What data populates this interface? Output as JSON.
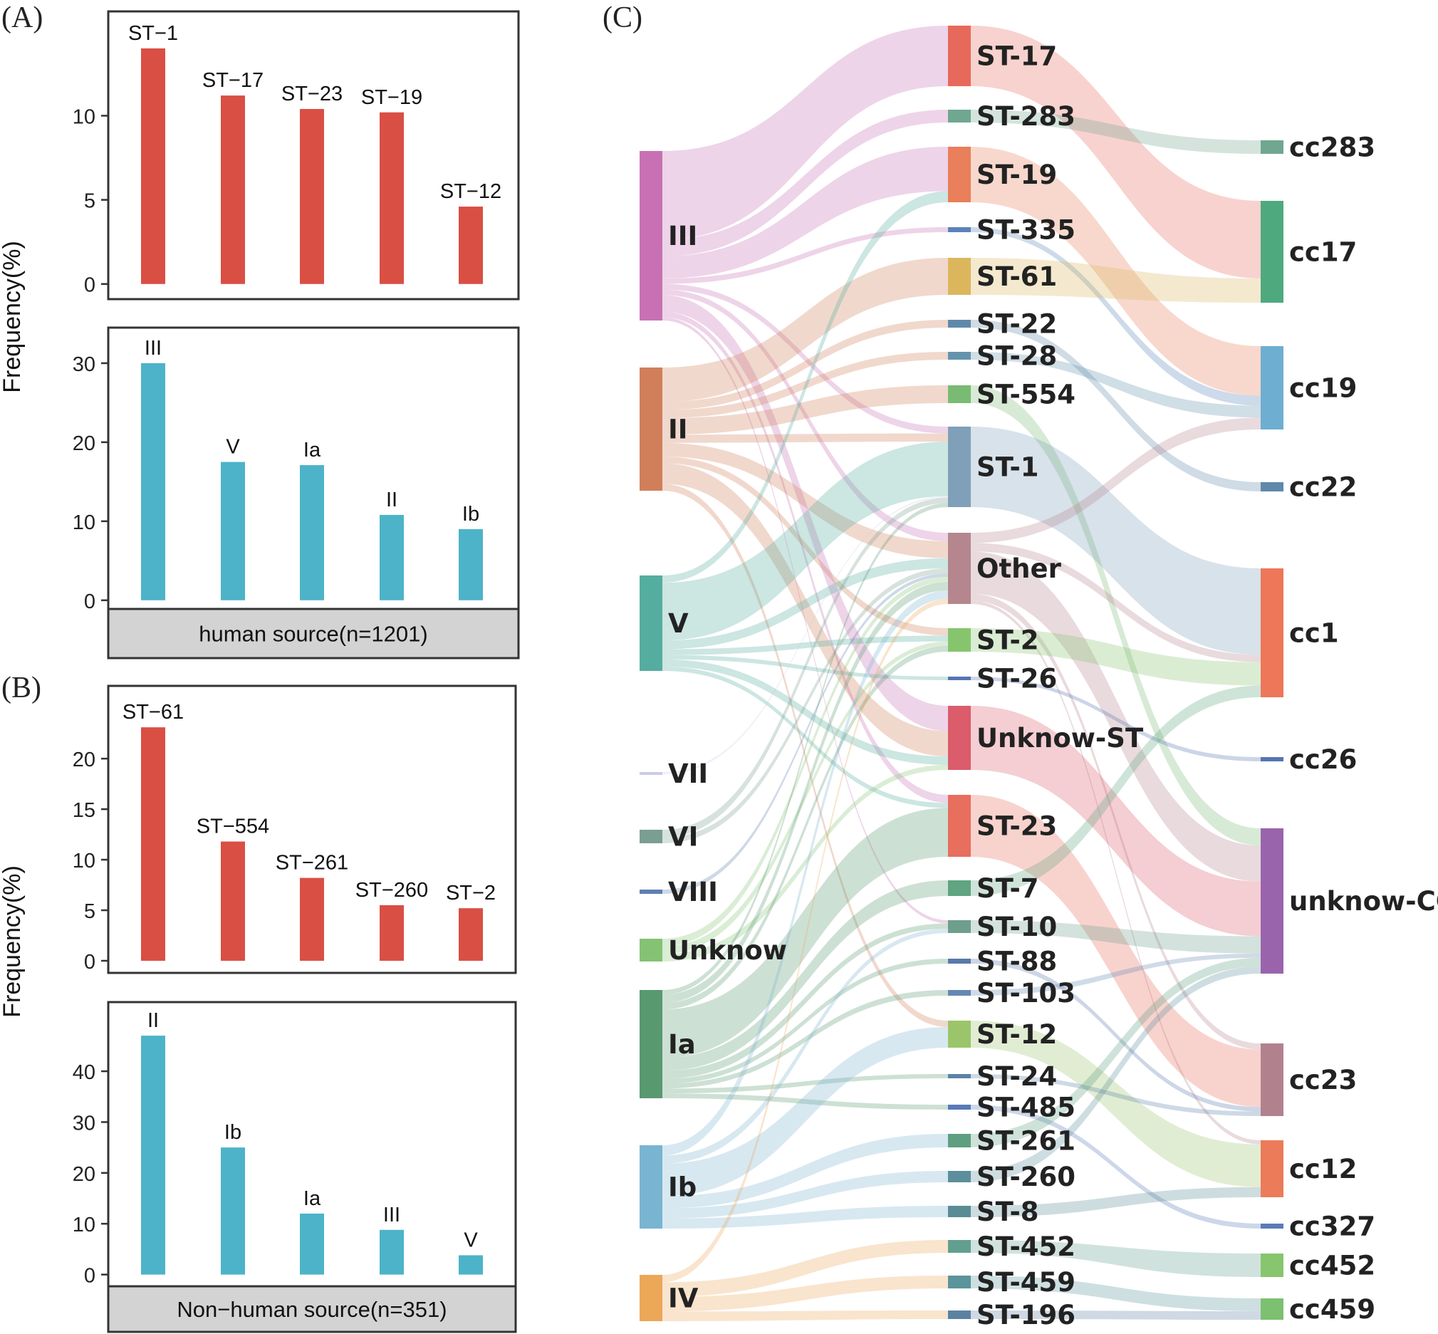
{
  "panel_labels": {
    "a": "(A)",
    "b": "(B)",
    "c": "(C)"
  },
  "y_axis_label": "Frequency(%)",
  "colors": {
    "st_bar": "#d94f44",
    "serotype_bar": "#4db3c8",
    "caption_fill": "#d3d3d3"
  },
  "chart_data": [
    {
      "id": "A-top",
      "type": "bar",
      "title": "",
      "xlabel": "",
      "ylabel": "Frequency(%)",
      "categories": [
        "ST−1",
        "ST−17",
        "ST−23",
        "ST−19",
        "ST−12"
      ],
      "values": [
        14.0,
        11.2,
        10.4,
        10.2,
        4.6
      ],
      "ylim": [
        -0.9,
        16.2
      ],
      "yticks": [
        0,
        5,
        10
      ],
      "grid": false
    },
    {
      "id": "A-bottom",
      "type": "bar",
      "title": "",
      "xlabel": "human source(n=1201)",
      "ylabel": "Frequency(%)",
      "categories": [
        "III",
        "V",
        "Ia",
        "II",
        "Ib"
      ],
      "values": [
        30.0,
        17.5,
        17.1,
        10.8,
        9.0
      ],
      "ylim": [
        -1.1,
        34.5
      ],
      "yticks": [
        0,
        10,
        20,
        30
      ],
      "grid": false
    },
    {
      "id": "B-top",
      "type": "bar",
      "title": "",
      "xlabel": "",
      "ylabel": "Frequency(%)",
      "categories": [
        "ST−61",
        "ST−554",
        "ST−261",
        "ST−260",
        "ST−2"
      ],
      "values": [
        23.1,
        11.8,
        8.2,
        5.5,
        5.2
      ],
      "ylim": [
        -1.2,
        27.2
      ],
      "yticks": [
        0,
        5,
        10,
        15,
        20
      ],
      "grid": false
    },
    {
      "id": "B-bottom",
      "type": "bar",
      "title": "",
      "xlabel": "Non−human source(n=351)",
      "ylabel": "Frequency(%)",
      "categories": [
        "II",
        "Ib",
        "Ia",
        "III",
        "V"
      ],
      "values": [
        47.0,
        25.0,
        12.0,
        8.8,
        3.8
      ],
      "ylim": [
        -2.3,
        53.6
      ],
      "yticks": [
        0,
        10,
        20,
        30,
        40
      ],
      "grid": false
    },
    {
      "id": "C",
      "type": "sankey",
      "title": "",
      "left_nodes": [
        {
          "id": "III",
          "label": "III",
          "color": "#c771b4"
        },
        {
          "id": "II",
          "label": "II",
          "color": "#d17f5b"
        },
        {
          "id": "V",
          "label": "V",
          "color": "#55ad9f"
        },
        {
          "id": "VII",
          "label": "VII",
          "color": "#c9cbe8"
        },
        {
          "id": "VI",
          "label": "VI",
          "color": "#7a9e92"
        },
        {
          "id": "VIII",
          "label": "VIII",
          "color": "#5e7fb1"
        },
        {
          "id": "Unknow",
          "label": "Unknow",
          "color": "#85c274"
        },
        {
          "id": "Ia",
          "label": "Ia",
          "color": "#58996f"
        },
        {
          "id": "Ib",
          "label": "Ib",
          "color": "#79b4d1"
        },
        {
          "id": "IV",
          "label": "IV",
          "color": "#eca758"
        }
      ],
      "middle_nodes": [
        {
          "id": "ST-17",
          "label": "ST-17",
          "color": "#e7695c"
        },
        {
          "id": "ST-283",
          "label": "ST-283",
          "color": "#6fa790"
        },
        {
          "id": "ST-19",
          "label": "ST-19",
          "color": "#e97f5b"
        },
        {
          "id": "ST-335",
          "label": "ST-335",
          "color": "#5b83b7"
        },
        {
          "id": "ST-61",
          "label": "ST-61",
          "color": "#dbb65c"
        },
        {
          "id": "ST-22",
          "label": "ST-22",
          "color": "#5f89aa"
        },
        {
          "id": "ST-28",
          "label": "ST-28",
          "color": "#6593ad"
        },
        {
          "id": "ST-554",
          "label": "ST-554",
          "color": "#79bb73"
        },
        {
          "id": "ST-1",
          "label": "ST-1",
          "color": "#7fa0b8"
        },
        {
          "id": "Other",
          "label": "Other",
          "color": "#b5868e"
        },
        {
          "id": "ST-2",
          "label": "ST-2",
          "color": "#86c56d"
        },
        {
          "id": "ST-26",
          "label": "ST-26",
          "color": "#5575b3"
        },
        {
          "id": "Unknow-ST",
          "label": "Unknow-ST",
          "color": "#db5c6b"
        },
        {
          "id": "ST-23",
          "label": "ST-23",
          "color": "#e86e5e"
        },
        {
          "id": "ST-7",
          "label": "ST-7",
          "color": "#60a482"
        },
        {
          "id": "ST-10",
          "label": "ST-10",
          "color": "#6e9e8c"
        },
        {
          "id": "ST-88",
          "label": "ST-88",
          "color": "#5a78ac"
        },
        {
          "id": "ST-103",
          "label": "ST-103",
          "color": "#6587b2"
        },
        {
          "id": "ST-12",
          "label": "ST-12",
          "color": "#9bc56a"
        },
        {
          "id": "ST-24",
          "label": "ST-24",
          "color": "#5b82aa"
        },
        {
          "id": "ST-485",
          "label": "ST-485",
          "color": "#5a7ab8"
        },
        {
          "id": "ST-261",
          "label": "ST-261",
          "color": "#5d9f80"
        },
        {
          "id": "ST-260",
          "label": "ST-260",
          "color": "#5c8e9b"
        },
        {
          "id": "ST-8",
          "label": "ST-8",
          "color": "#5a8c96"
        },
        {
          "id": "ST-452",
          "label": "ST-452",
          "color": "#629f91"
        },
        {
          "id": "ST-459",
          "label": "ST-459",
          "color": "#5b949a"
        },
        {
          "id": "ST-196",
          "label": "ST-196",
          "color": "#5c82a2"
        }
      ],
      "right_nodes": [
        {
          "id": "cc283",
          "label": "cc283",
          "color": "#6fa790"
        },
        {
          "id": "cc17",
          "label": "cc17",
          "color": "#4fa97e"
        },
        {
          "id": "cc19",
          "label": "cc19",
          "color": "#6eaed0"
        },
        {
          "id": "cc22",
          "label": "cc22",
          "color": "#5f89aa"
        },
        {
          "id": "cc1",
          "label": "cc1",
          "color": "#ed7758"
        },
        {
          "id": "cc26",
          "label": "cc26",
          "color": "#5575b3"
        },
        {
          "id": "unknow-CC",
          "label": "unknow-CC",
          "color": "#9a64ad"
        },
        {
          "id": "cc23",
          "label": "cc23",
          "color": "#b2818e"
        },
        {
          "id": "cc12",
          "label": "cc12",
          "color": "#ec7b59"
        },
        {
          "id": "cc327",
          "label": "cc327",
          "color": "#5a7ab8"
        },
        {
          "id": "cc452",
          "label": "cc452",
          "color": "#87c56e"
        },
        {
          "id": "cc459",
          "label": "cc459",
          "color": "#7cc070"
        }
      ],
      "links": [
        {
          "source": "III",
          "target": "ST-17",
          "value": 8
        },
        {
          "source": "III",
          "target": "ST-283",
          "value": 1.5
        },
        {
          "source": "III",
          "target": "ST-19",
          "value": 2
        },
        {
          "source": "III",
          "target": "ST-335",
          "value": 0.5
        },
        {
          "source": "III",
          "target": "ST-1",
          "value": 0.5
        },
        {
          "source": "III",
          "target": "Other",
          "value": 0.5
        },
        {
          "source": "III",
          "target": "Unknow-ST",
          "value": 1.5
        },
        {
          "source": "III",
          "target": "ST-23",
          "value": 0.5
        },
        {
          "source": "III",
          "target": "ST-10",
          "value": 0.3
        },
        {
          "source": "II",
          "target": "ST-61",
          "value": 2.5
        },
        {
          "source": "II",
          "target": "ST-22",
          "value": 0.6
        },
        {
          "source": "II",
          "target": "ST-28",
          "value": 0.6
        },
        {
          "source": "II",
          "target": "ST-554",
          "value": 1.2
        },
        {
          "source": "II",
          "target": "ST-1",
          "value": 0.6
        },
        {
          "source": "II",
          "target": "Other",
          "value": 1
        },
        {
          "source": "II",
          "target": "ST-2",
          "value": 0.5
        },
        {
          "source": "II",
          "target": "Unknow-ST",
          "value": 1.5
        },
        {
          "source": "II",
          "target": "ST-12",
          "value": 0.5
        },
        {
          "source": "V",
          "target": "ST-19",
          "value": 0.5
        },
        {
          "source": "V",
          "target": "ST-1",
          "value": 4
        },
        {
          "source": "V",
          "target": "Other",
          "value": 0.6
        },
        {
          "source": "V",
          "target": "ST-2",
          "value": 0.4
        },
        {
          "source": "V",
          "target": "ST-26",
          "value": 0.3
        },
        {
          "source": "V",
          "target": "Unknow-ST",
          "value": 0.5
        },
        {
          "source": "V",
          "target": "ST-23",
          "value": 0.3
        },
        {
          "source": "VII",
          "target": "ST-1",
          "value": 0.1
        },
        {
          "source": "VI",
          "target": "ST-1",
          "value": 0.4
        },
        {
          "source": "VI",
          "target": "Other",
          "value": 0.3
        },
        {
          "source": "VIII",
          "target": "Other",
          "value": 0.2
        },
        {
          "source": "Unknow",
          "target": "ST-2",
          "value": 0.3
        },
        {
          "source": "Unknow",
          "target": "Other",
          "value": 0.3
        },
        {
          "source": "Unknow",
          "target": "Unknow-ST",
          "value": 0.3
        },
        {
          "source": "Ia",
          "target": "ST-23",
          "value": 3
        },
        {
          "source": "Ia",
          "target": "ST-7",
          "value": 0.8
        },
        {
          "source": "Ia",
          "target": "ST-10",
          "value": 0.5
        },
        {
          "source": "Ia",
          "target": "ST-88",
          "value": 0.3
        },
        {
          "source": "Ia",
          "target": "ST-103",
          "value": 0.3
        },
        {
          "source": "Ia",
          "target": "ST-24",
          "value": 0.3
        },
        {
          "source": "Ia",
          "target": "ST-485",
          "value": 0.3
        },
        {
          "source": "Ia",
          "target": "Other",
          "value": 0.5
        },
        {
          "source": "Ia",
          "target": "ST-2",
          "value": 0.4
        },
        {
          "source": "Ia",
          "target": "ST-1",
          "value": 0.3
        },
        {
          "source": "Ib",
          "target": "ST-12",
          "value": 1.6
        },
        {
          "source": "Ib",
          "target": "ST-261",
          "value": 0.6
        },
        {
          "source": "Ib",
          "target": "ST-260",
          "value": 0.5
        },
        {
          "source": "Ib",
          "target": "ST-8",
          "value": 0.5
        },
        {
          "source": "Ib",
          "target": "ST-10",
          "value": 0.4
        },
        {
          "source": "Ib",
          "target": "Other",
          "value": 0.5
        },
        {
          "source": "IV",
          "target": "ST-452",
          "value": 0.6
        },
        {
          "source": "IV",
          "target": "ST-459",
          "value": 0.6
        },
        {
          "source": "IV",
          "target": "ST-196",
          "value": 0.4
        },
        {
          "source": "IV",
          "target": "Other",
          "value": 0.3
        },
        {
          "source": "ST-17",
          "target": "cc17",
          "value": 8
        },
        {
          "source": "ST-283",
          "target": "cc283",
          "value": 1.5
        },
        {
          "source": "ST-19",
          "target": "cc19",
          "value": 2.5
        },
        {
          "source": "ST-335",
          "target": "cc19",
          "value": 0.5
        },
        {
          "source": "ST-61",
          "target": "cc17",
          "value": 2.5
        },
        {
          "source": "ST-22",
          "target": "cc22",
          "value": 0.6
        },
        {
          "source": "ST-28",
          "target": "cc19",
          "value": 0.6
        },
        {
          "source": "ST-554",
          "target": "unknow-CC",
          "value": 1.2
        },
        {
          "source": "ST-1",
          "target": "cc1",
          "value": 5.9
        },
        {
          "source": "Other",
          "target": "unknow-CC",
          "value": 2.5
        },
        {
          "source": "Other",
          "target": "cc1",
          "value": 0.5
        },
        {
          "source": "Other",
          "target": "cc19",
          "value": 0.6
        },
        {
          "source": "Other",
          "target": "cc23",
          "value": 0.4
        },
        {
          "source": "Other",
          "target": "cc12",
          "value": 0.2
        },
        {
          "source": "ST-2",
          "target": "cc1",
          "value": 1.6
        },
        {
          "source": "ST-26",
          "target": "cc26",
          "value": 0.3
        },
        {
          "source": "Unknow-ST",
          "target": "unknow-CC",
          "value": 3.8
        },
        {
          "source": "ST-23",
          "target": "cc23",
          "value": 3.8
        },
        {
          "source": "ST-7",
          "target": "cc1",
          "value": 0.8
        },
        {
          "source": "ST-10",
          "target": "unknow-CC",
          "value": 1.2
        },
        {
          "source": "ST-88",
          "target": "cc23",
          "value": 0.3
        },
        {
          "source": "ST-103",
          "target": "unknow-CC",
          "value": 0.3
        },
        {
          "source": "ST-12",
          "target": "cc12",
          "value": 2.1
        },
        {
          "source": "ST-24",
          "target": "cc23",
          "value": 0.3
        },
        {
          "source": "ST-485",
          "target": "cc327",
          "value": 0.3
        },
        {
          "source": "ST-261",
          "target": "unknow-CC",
          "value": 0.6
        },
        {
          "source": "ST-260",
          "target": "unknow-CC",
          "value": 0.5
        },
        {
          "source": "ST-8",
          "target": "cc12",
          "value": 0.5
        },
        {
          "source": "ST-452",
          "target": "cc452",
          "value": 0.6
        },
        {
          "source": "ST-459",
          "target": "cc459",
          "value": 0.6
        },
        {
          "source": "ST-196",
          "target": "cc459",
          "value": 0.4
        }
      ]
    }
  ]
}
